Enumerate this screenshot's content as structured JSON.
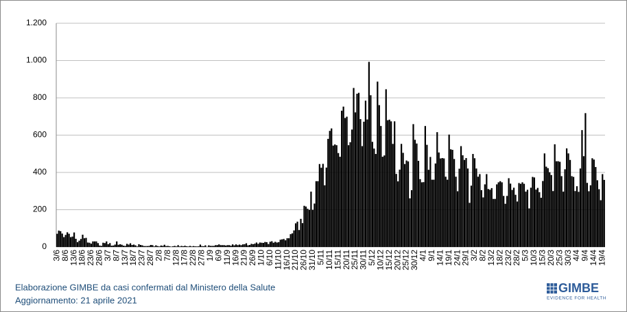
{
  "chart_data": {
    "type": "bar",
    "color": "#000000",
    "grid": true,
    "ylim": [
      0,
      1200
    ],
    "yticks": [
      0,
      200,
      400,
      600,
      800,
      {
        "value": 1000,
        "label": "1.000"
      },
      {
        "value": 1200,
        "label": "1.200"
      }
    ],
    "categories": [
      "3/6",
      null,
      null,
      null,
      null,
      "8/6",
      null,
      null,
      null,
      null,
      "13/6",
      null,
      null,
      null,
      null,
      "18/6",
      null,
      null,
      null,
      null,
      "23/6",
      null,
      null,
      null,
      null,
      "28/6",
      null,
      null,
      null,
      null,
      "3/7",
      null,
      null,
      null,
      null,
      "8/7",
      null,
      null,
      null,
      null,
      "13/7",
      null,
      null,
      null,
      null,
      "18/7",
      null,
      null,
      null,
      null,
      "23/7",
      null,
      null,
      null,
      null,
      "28/7",
      null,
      null,
      null,
      null,
      "2/8",
      null,
      null,
      null,
      null,
      "7/8",
      null,
      null,
      null,
      null,
      "12/8",
      null,
      null,
      null,
      null,
      "17/8",
      null,
      null,
      null,
      null,
      "22/8",
      null,
      null,
      null,
      null,
      "27/8",
      null,
      null,
      null,
      null,
      "1/9",
      null,
      null,
      null,
      null,
      "6/9",
      null,
      null,
      null,
      null,
      "11/9",
      null,
      null,
      null,
      null,
      "16/9",
      null,
      null,
      null,
      null,
      "21/9",
      null,
      null,
      null,
      null,
      "26/9",
      null,
      null,
      null,
      null,
      "1/10",
      null,
      null,
      null,
      null,
      "6/10",
      null,
      null,
      null,
      null,
      "11/10",
      null,
      null,
      null,
      null,
      "16/10",
      null,
      null,
      null,
      null,
      "21/10",
      null,
      null,
      null,
      null,
      "26/10",
      null,
      null,
      null,
      null,
      "31/10",
      null,
      null,
      null,
      null,
      "5/11",
      null,
      null,
      null,
      null,
      "10/11",
      null,
      null,
      null,
      null,
      "15/11",
      null,
      null,
      null,
      null,
      "20/11",
      null,
      null,
      null,
      null,
      "25/11",
      null,
      null,
      null,
      null,
      "30/11",
      null,
      null,
      null,
      null,
      "5/12",
      null,
      null,
      null,
      null,
      "10/12",
      null,
      null,
      null,
      null,
      "15/12",
      null,
      null,
      null,
      null,
      "20/12",
      null,
      null,
      null,
      null,
      "25/12",
      null,
      null,
      null,
      null,
      "30/12",
      null,
      null,
      null,
      null,
      "4/1",
      null,
      null,
      null,
      null,
      "9/1",
      null,
      null,
      null,
      null,
      "14/1",
      null,
      null,
      null,
      null,
      "19/1",
      null,
      null,
      null,
      null,
      "24/1",
      null,
      null,
      null,
      null,
      "29/1",
      null,
      null,
      null,
      null,
      "3/2",
      null,
      null,
      null,
      null,
      "8/2",
      null,
      null,
      null,
      null,
      "13/2",
      null,
      null,
      null,
      null,
      "18/2",
      null,
      null,
      null,
      null,
      "23/2",
      null,
      null,
      null,
      null,
      "28/2",
      null,
      null,
      null,
      null,
      "5/3",
      null,
      null,
      null,
      null,
      "10/3",
      null,
      null,
      null,
      null,
      "15/3",
      null,
      null,
      null,
      null,
      "20/3",
      null,
      null,
      null,
      null,
      "25/3",
      null,
      null,
      null,
      null,
      "30/3",
      null,
      null,
      null,
      null,
      "4/4",
      null,
      null,
      null,
      null,
      "9/4",
      null,
      null,
      null,
      null,
      "14/4",
      null,
      null,
      null,
      null,
      "19/4",
      null
    ],
    "values": [
      71,
      88,
      85,
      72,
      53,
      65,
      79,
      71,
      53,
      56,
      78,
      44,
      26,
      34,
      43,
      66,
      47,
      49,
      24,
      23,
      18,
      30,
      30,
      30,
      21,
      8,
      6,
      23,
      21,
      30,
      15,
      21,
      7,
      8,
      13,
      30,
      12,
      15,
      12,
      7,
      6,
      17,
      13,
      20,
      11,
      13,
      9,
      3,
      15,
      11,
      9,
      5,
      5,
      5,
      6,
      11,
      10,
      3,
      9,
      5,
      3,
      8,
      6,
      12,
      5,
      6,
      4,
      2,
      4,
      6,
      3,
      10,
      3,
      6,
      4,
      7,
      4,
      3,
      6,
      3,
      5,
      4,
      3,
      4,
      13,
      5,
      4,
      9,
      1,
      9,
      6,
      6,
      6,
      10,
      10,
      14,
      10,
      10,
      10,
      8,
      10,
      10,
      7,
      14,
      9,
      14,
      10,
      13,
      10,
      14,
      15,
      20,
      9,
      11,
      17,
      15,
      18,
      24,
      17,
      24,
      23,
      22,
      27,
      26,
      16,
      28,
      31,
      23,
      28,
      24,
      26,
      39,
      41,
      43,
      36,
      47,
      47,
      69,
      73,
      89,
      127,
      136,
      91,
      151,
      128,
      221,
      217,
      205,
      199,
      297,
      199,
      233,
      353,
      353,
      445,
      425,
      446,
      331,
      426,
      580,
      623,
      636,
      544,
      550,
      546,
      504,
      484,
      731,
      753,
      692,
      699,
      546,
      562,
      630,
      853,
      722,
      822,
      827,
      686,
      541,
      672,
      785,
      684,
      993,
      814,
      564,
      528,
      499,
      887,
      761,
      649,
      484,
      491,
      846,
      680,
      683,
      674,
      553,
      674,
      392,
      352,
      415,
      553,
      505,
      445,
      464,
      459,
      261,
      305,
      659,
      575,
      555,
      462,
      364,
      347,
      348,
      649,
      548,
      414,
      483,
      361,
      361,
      448,
      616,
      507,
      475,
      477,
      475,
      377,
      361,
      603,
      524,
      521,
      472,
      377,
      299,
      420,
      541,
      492,
      467,
      477,
      421,
      237,
      329,
      499,
      476,
      421,
      377,
      391,
      305,
      266,
      336,
      391,
      311,
      307,
      316,
      258,
      258,
      336,
      347,
      353,
      347,
      274,
      232,
      274,
      369,
      340,
      306,
      318,
      280,
      244,
      343,
      339,
      347,
      339,
      297,
      307,
      207,
      318,
      376,
      373,
      308,
      317,
      294,
      264,
      354,
      502,
      431,
      423,
      401,
      386,
      300,
      551,
      460,
      460,
      457,
      380,
      297,
      417,
      529,
      502,
      467,
      380,
      376,
      300,
      326,
      296,
      421,
      627,
      487,
      718,
      344,
      299,
      331,
      476,
      469,
      429,
      358,
      310,
      251,
      391,
      360
    ]
  },
  "footer": {
    "source": "Elaborazione GIMBE da casi confermati dal Ministero della Salute",
    "updated": "Aggiornamento: 21 aprile 2021"
  },
  "logo": {
    "name": "GIMBE",
    "tagline": "EVIDENCE FOR HEALTH"
  }
}
